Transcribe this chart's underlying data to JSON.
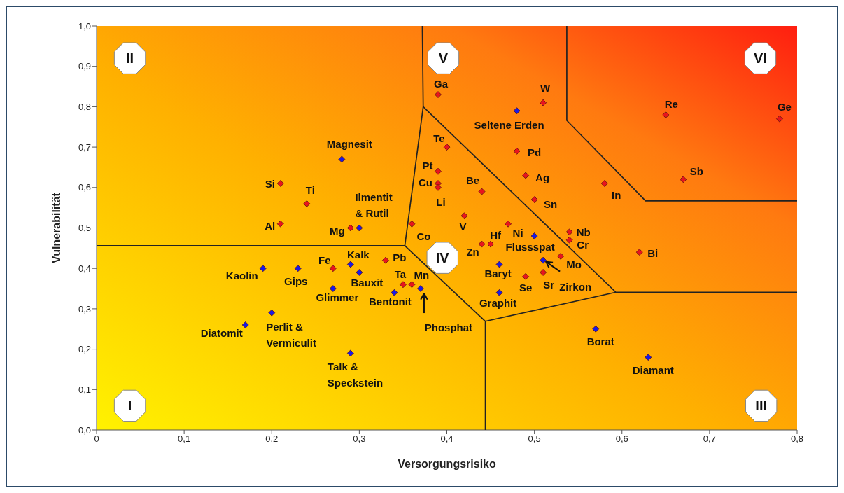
{
  "chart_data": {
    "type": "scatter",
    "xlabel": "Versorgungsrisiko",
    "ylabel": "Vulnerabilität",
    "xlim": [
      0,
      0.8
    ],
    "ylim": [
      0,
      1
    ],
    "xticks": [
      0,
      {
        "value": 0.1,
        "label": "0,1"
      },
      {
        "value": 0.2,
        "label": "0,2"
      },
      {
        "value": 0.3,
        "label": "0,3"
      },
      {
        "value": 0.4,
        "label": "0,4"
      },
      {
        "value": 0.5,
        "label": "0,5"
      },
      {
        "value": 0.6,
        "label": "0,6"
      },
      {
        "value": 0.7,
        "label": "0,7"
      },
      {
        "value": 0.8,
        "label": "0,8"
      }
    ],
    "yticks": [
      {
        "value": 0,
        "label": "0,0"
      },
      {
        "value": 0.1,
        "label": "0,1"
      },
      {
        "value": 0.2,
        "label": "0,2"
      },
      {
        "value": 0.3,
        "label": "0,3"
      },
      {
        "value": 0.4,
        "label": "0,4"
      },
      {
        "value": 0.5,
        "label": "0,5"
      },
      {
        "value": 0.6,
        "label": "0,6"
      },
      {
        "value": 0.7,
        "label": "0,7"
      },
      {
        "value": 0.8,
        "label": "0,8"
      },
      {
        "value": 0.9,
        "label": "0,9"
      },
      {
        "value": 1,
        "label": "1,0"
      }
    ],
    "marker": "diamond",
    "series": [
      {
        "color": "#e8141e",
        "x": [
          0.39,
          0.51,
          0.65,
          0.78,
          0.4,
          0.48,
          0.39,
          0.49,
          0.39,
          0.39,
          0.58,
          0.67,
          0.44,
          0.5,
          0.21,
          0.24,
          0.21,
          0.29,
          0.42,
          0.47,
          0.36,
          0.54,
          0.54,
          0.44,
          0.45,
          0.62,
          0.53,
          0.51,
          0.49,
          0.27,
          0.33,
          0.35,
          0.36
        ],
        "values": [
          0.83,
          0.81,
          0.78,
          0.77,
          0.7,
          0.69,
          0.64,
          0.63,
          0.61,
          0.6,
          0.61,
          0.62,
          0.59,
          0.57,
          0.61,
          0.56,
          0.51,
          0.5,
          0.53,
          0.51,
          0.51,
          0.49,
          0.47,
          0.46,
          0.46,
          0.44,
          0.43,
          0.39,
          0.38,
          0.4,
          0.42,
          0.36,
          0.36
        ]
      },
      {
        "color": "#1a1ae6",
        "x": [
          0.48,
          0.28,
          0.3,
          0.5,
          0.51,
          0.46,
          0.46,
          0.19,
          0.23,
          0.29,
          0.3,
          0.27,
          0.34,
          0.37,
          0.17,
          0.2,
          0.29,
          0.57,
          0.63
        ],
        "values": [
          0.79,
          0.67,
          0.5,
          0.48,
          0.42,
          0.41,
          0.34,
          0.4,
          0.4,
          0.41,
          0.39,
          0.35,
          0.34,
          0.35,
          0.26,
          0.29,
          0.19,
          0.25,
          0.18
        ]
      },
      {
        "type": "line",
        "marker": "none",
        "color": "#222222",
        "x": [
          0,
          0.352,
          0.444,
          0.444
        ],
        "values": [
          0.456,
          0.456,
          0.269,
          0
        ]
      },
      {
        "type": "line",
        "marker": "none",
        "color": "#222222",
        "x": [
          0.372,
          0.373,
          0.352
        ],
        "values": [
          1,
          0.8,
          0.456
        ]
      },
      {
        "type": "line",
        "marker": "none",
        "color": "#222222",
        "x": [
          0.373,
          0.593,
          0.8
        ],
        "values": [
          0.8,
          0.341,
          0.341
        ]
      },
      {
        "type": "line",
        "marker": "none",
        "color": "#222222",
        "x": [
          0.444,
          0.593
        ],
        "values": [
          0.269,
          0.341
        ]
      },
      {
        "type": "line",
        "marker": "none",
        "color": "#222222",
        "x": [
          0.537,
          0.537,
          0.627,
          0.8
        ],
        "values": [
          1,
          0.766,
          0.567,
          0.567
        ]
      }
    ],
    "annotations": [
      {
        "text": "Ga",
        "x": 0.39,
        "y": 0.83
      },
      {
        "text": "W",
        "x": 0.51,
        "y": 0.81
      },
      {
        "text": "Re",
        "x": 0.65,
        "y": 0.78
      },
      {
        "text": "Ge",
        "x": 0.78,
        "y": 0.77
      },
      {
        "text": "Te",
        "x": 0.4,
        "y": 0.7
      },
      {
        "text": "Pd",
        "x": 0.48,
        "y": 0.69
      },
      {
        "text": "Pt",
        "x": 0.39,
        "y": 0.64
      },
      {
        "text": "Ag",
        "x": 0.49,
        "y": 0.63
      },
      {
        "text": "Cu",
        "x": 0.39,
        "y": 0.61
      },
      {
        "text": "Li",
        "x": 0.39,
        "y": 0.6
      },
      {
        "text": "In",
        "x": 0.58,
        "y": 0.61
      },
      {
        "text": "Sb",
        "x": 0.67,
        "y": 0.62
      },
      {
        "text": "Be",
        "x": 0.44,
        "y": 0.59
      },
      {
        "text": "Sn",
        "x": 0.5,
        "y": 0.57
      },
      {
        "text": "Si",
        "x": 0.21,
        "y": 0.61
      },
      {
        "text": "Ti",
        "x": 0.24,
        "y": 0.56
      },
      {
        "text": "Al",
        "x": 0.21,
        "y": 0.51
      },
      {
        "text": "Mg",
        "x": 0.29,
        "y": 0.5
      },
      {
        "text": "V",
        "x": 0.42,
        "y": 0.53
      },
      {
        "text": "Ni",
        "x": 0.47,
        "y": 0.51
      },
      {
        "text": "Co",
        "x": 0.36,
        "y": 0.51
      },
      {
        "text": "Nb",
        "x": 0.54,
        "y": 0.49
      },
      {
        "text": "Cr",
        "x": 0.54,
        "y": 0.47
      },
      {
        "text": "Zn",
        "x": 0.44,
        "y": 0.46
      },
      {
        "text": "Hf",
        "x": 0.45,
        "y": 0.46
      },
      {
        "text": "Bi",
        "x": 0.62,
        "y": 0.44
      },
      {
        "text": "Mo",
        "x": 0.53,
        "y": 0.43
      },
      {
        "text": "Sr",
        "x": 0.51,
        "y": 0.39
      },
      {
        "text": "Se",
        "x": 0.49,
        "y": 0.38
      },
      {
        "text": "Fe",
        "x": 0.27,
        "y": 0.4
      },
      {
        "text": "Pb",
        "x": 0.33,
        "y": 0.42
      },
      {
        "text": "Ta",
        "x": 0.35,
        "y": 0.36
      },
      {
        "text": "Mn",
        "x": 0.36,
        "y": 0.36
      },
      {
        "text": "Seltene Erden",
        "x": 0.48,
        "y": 0.79
      },
      {
        "text": "Magnesit",
        "x": 0.28,
        "y": 0.67
      },
      {
        "text": "Ilmentit & Rutil",
        "x": 0.3,
        "y": 0.5
      },
      {
        "text": "Flussspat",
        "x": 0.5,
        "y": 0.48
      },
      {
        "text": "Zirkon",
        "x": 0.51,
        "y": 0.42
      },
      {
        "text": "Baryt",
        "x": 0.46,
        "y": 0.41
      },
      {
        "text": "Graphit",
        "x": 0.46,
        "y": 0.34
      },
      {
        "text": "Kaolin",
        "x": 0.19,
        "y": 0.4
      },
      {
        "text": "Gips",
        "x": 0.23,
        "y": 0.4
      },
      {
        "text": "Kalk",
        "x": 0.29,
        "y": 0.41
      },
      {
        "text": "Bauxit",
        "x": 0.3,
        "y": 0.39
      },
      {
        "text": "Glimmer",
        "x": 0.27,
        "y": 0.35
      },
      {
        "text": "Bentonit",
        "x": 0.34,
        "y": 0.34
      },
      {
        "text": "Phosphat",
        "x": 0.37,
        "y": 0.35
      },
      {
        "text": "Diatomit",
        "x": 0.17,
        "y": 0.26
      },
      {
        "text": "Perlit & Vermiculit",
        "x": 0.2,
        "y": 0.29
      },
      {
        "text": "Talk & Speckstein",
        "x": 0.29,
        "y": 0.19
      },
      {
        "text": "Borat",
        "x": 0.57,
        "y": 0.25
      },
      {
        "text": "Diamant",
        "x": 0.63,
        "y": 0.18
      },
      "I",
      "II",
      "III",
      "IV",
      "V",
      "VI"
    ]
  }
}
